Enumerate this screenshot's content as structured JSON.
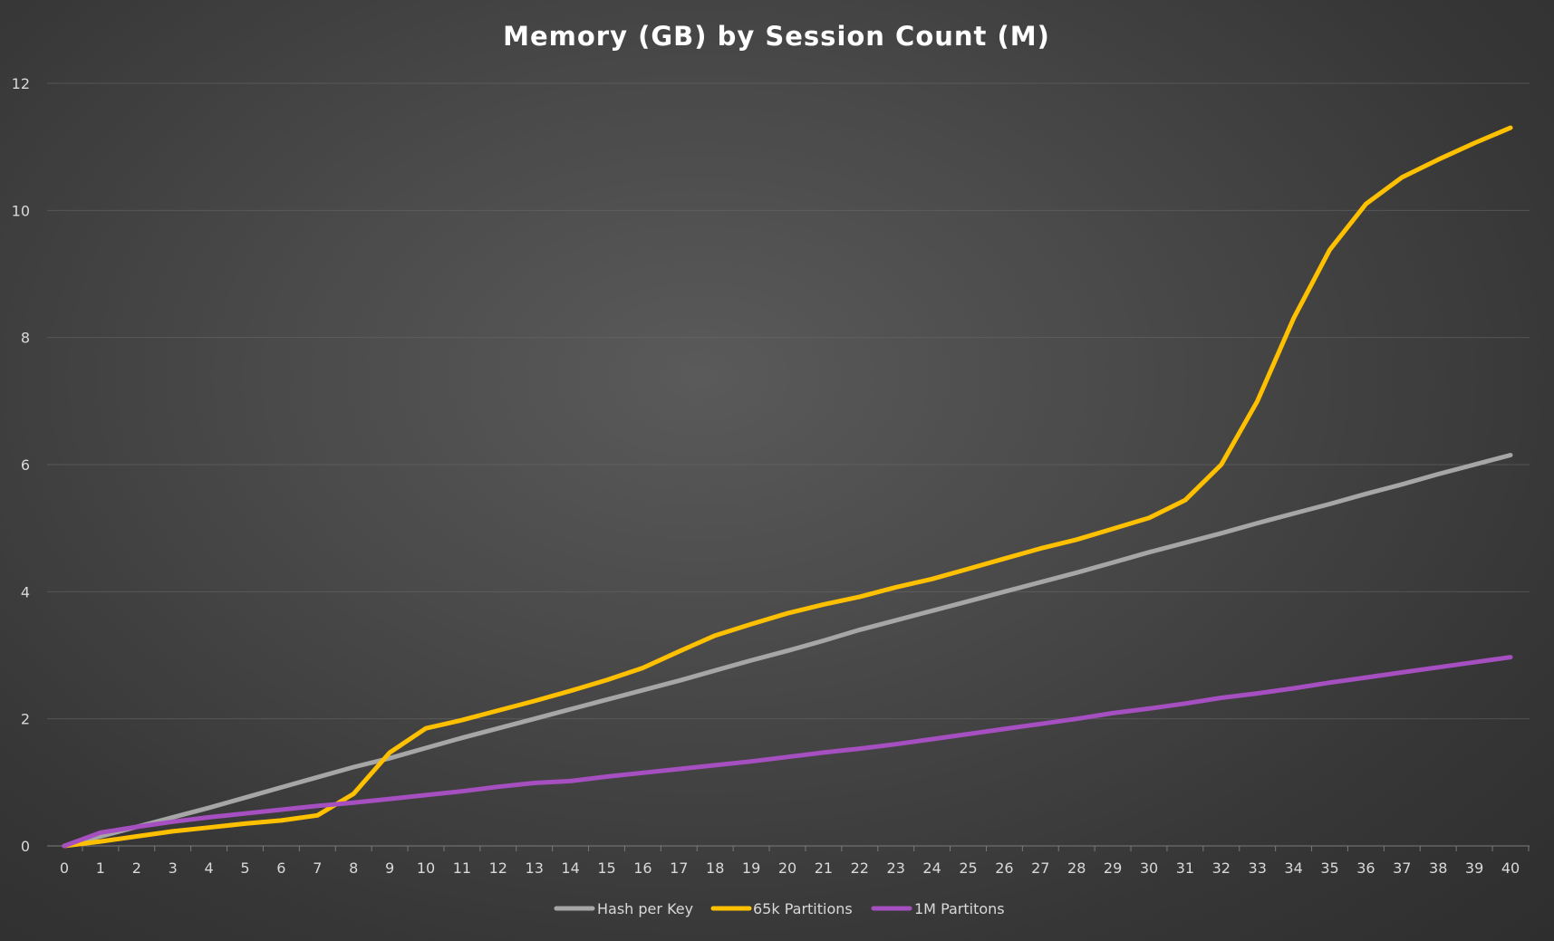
{
  "chart_data": {
    "type": "line",
    "title": "Memory (GB) by Session Count (M)",
    "xlabel": "",
    "ylabel": "",
    "x": [
      0,
      1,
      2,
      3,
      4,
      5,
      6,
      7,
      8,
      9,
      10,
      11,
      12,
      13,
      14,
      15,
      16,
      17,
      18,
      19,
      20,
      21,
      22,
      23,
      24,
      25,
      26,
      27,
      28,
      29,
      30,
      31,
      32,
      33,
      34,
      35,
      36,
      37,
      38,
      39,
      40
    ],
    "x_tick_labels": [
      "0",
      "1",
      "2",
      "3",
      "4",
      "5",
      "6",
      "7",
      "8",
      "9",
      "10",
      "11",
      "12",
      "13",
      "14",
      "15",
      "16",
      "17",
      "18",
      "19",
      "20",
      "21",
      "22",
      "23",
      "24",
      "25",
      "26",
      "27",
      "28",
      "29",
      "30",
      "31",
      "32",
      "33",
      "34",
      "35",
      "36",
      "37",
      "38",
      "39",
      "40"
    ],
    "ylim": [
      0,
      12
    ],
    "y_ticks": [
      0,
      2,
      4,
      6,
      8,
      10,
      12
    ],
    "y_tick_labels": [
      "0",
      "2",
      "4",
      "6",
      "8",
      "10",
      "12"
    ],
    "grid": true,
    "legend_position": "bottom",
    "series": [
      {
        "name": "Hash per Key",
        "color": "#a6a6a6",
        "values": [
          0,
          0.15,
          0.3,
          0.45,
          0.6,
          0.76,
          0.92,
          1.08,
          1.24,
          1.38,
          1.54,
          1.7,
          1.85,
          2.0,
          2.15,
          2.3,
          2.45,
          2.6,
          2.76,
          2.92,
          3.07,
          3.23,
          3.4,
          3.55,
          3.7,
          3.85,
          4.0,
          4.15,
          4.3,
          4.46,
          4.62,
          4.77,
          4.92,
          5.08,
          5.23,
          5.38,
          5.54,
          5.69,
          5.85,
          6.0,
          6.15
        ]
      },
      {
        "name": "65k Partitions",
        "color": "#ffc000",
        "values": [
          0,
          0.07,
          0.15,
          0.23,
          0.29,
          0.35,
          0.4,
          0.48,
          0.82,
          1.47,
          1.85,
          1.98,
          2.13,
          2.28,
          2.44,
          2.61,
          2.8,
          3.06,
          3.31,
          3.49,
          3.66,
          3.8,
          3.92,
          4.07,
          4.2,
          4.36,
          4.52,
          4.68,
          4.82,
          4.99,
          5.16,
          5.44,
          6.0,
          7.0,
          8.3,
          9.38,
          10.1,
          10.52,
          10.8,
          11.06,
          11.3
        ]
      },
      {
        "name": "1M Partitons",
        "color": "#a64fc1",
        "values": [
          0,
          0.21,
          0.3,
          0.38,
          0.45,
          0.51,
          0.57,
          0.63,
          0.68,
          0.74,
          0.8,
          0.86,
          0.93,
          0.99,
          1.02,
          1.09,
          1.15,
          1.21,
          1.27,
          1.33,
          1.4,
          1.47,
          1.53,
          1.6,
          1.68,
          1.76,
          1.84,
          1.92,
          2.0,
          2.09,
          2.16,
          2.24,
          2.33,
          2.4,
          2.48,
          2.57,
          2.65,
          2.73,
          2.81,
          2.89,
          2.97
        ]
      }
    ]
  }
}
